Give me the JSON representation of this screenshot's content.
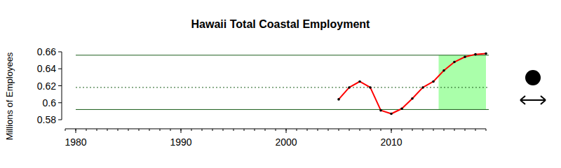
{
  "chart_data": {
    "type": "line",
    "title": "Hawaii Total Coastal Employment",
    "y_label": "Millions of Employees",
    "x": [
      2005,
      2006,
      2007,
      2008,
      2009,
      2010,
      2011,
      2012,
      2013,
      2014,
      2015,
      2016,
      2017,
      2018,
      2019
    ],
    "values": [
      0.604,
      0.618,
      0.625,
      0.618,
      0.591,
      0.587,
      0.593,
      0.605,
      0.618,
      0.625,
      0.638,
      0.648,
      0.654,
      0.657,
      0.658
    ],
    "color": "#ff0000",
    "marker": "circle",
    "xlim": [
      1979,
      2019
    ],
    "xticks": [
      1980,
      1990,
      2000,
      2010
    ],
    "ylim": [
      0.58,
      0.66
    ],
    "yticks": [
      0.58,
      0.6,
      0.62,
      0.64,
      0.66
    ],
    "upper_bound": 0.656,
    "mean": 0.618,
    "lower_bound": 0.592,
    "highlight_range": [
      2014.5,
      2019
    ]
  }
}
